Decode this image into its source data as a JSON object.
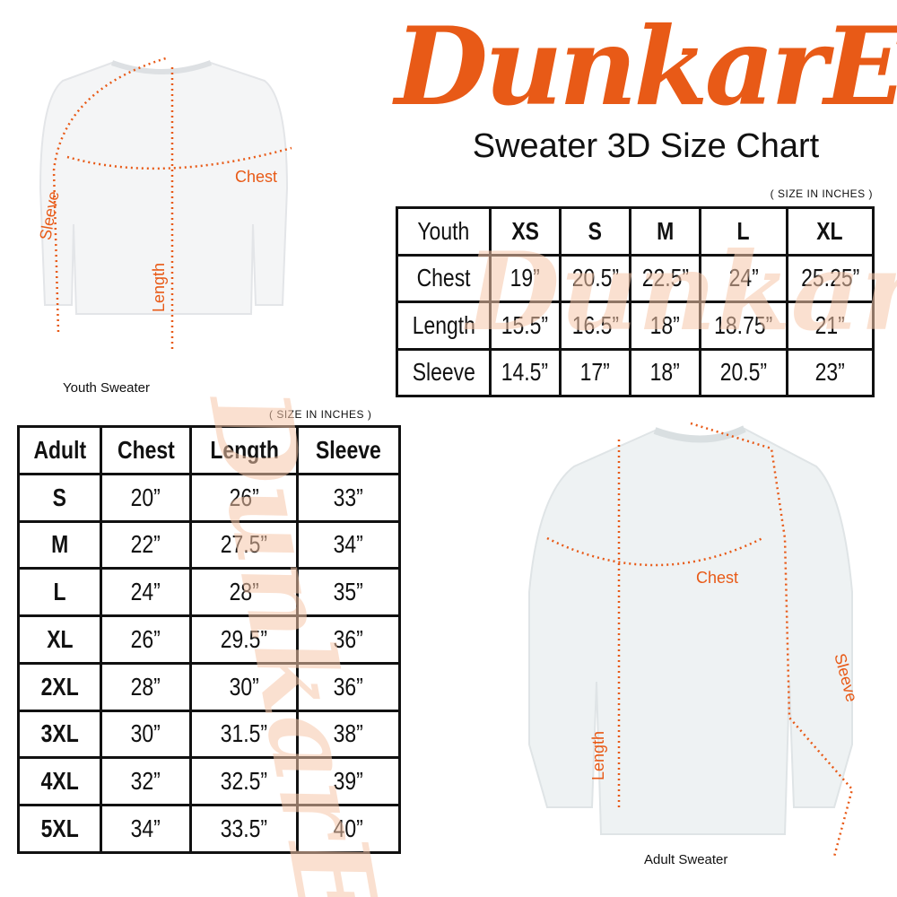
{
  "brand": {
    "logo_text": "DunkarE",
    "color": "#e85a17"
  },
  "title": "Sweater 3D Size Chart",
  "youth": {
    "unit_note": "( SIZE IN INCHES )",
    "header": [
      "Youth",
      "XS",
      "S",
      "M",
      "L",
      "XL"
    ],
    "rows": [
      [
        "Chest",
        "19”",
        "20.5”",
        "22.5”",
        "24”",
        "25.25”"
      ],
      [
        "Length",
        "15.5”",
        "16.5”",
        "18”",
        "18.75”",
        "21”"
      ],
      [
        "Sleeve",
        "14.5”",
        "17”",
        "18”",
        "20.5”",
        "23”"
      ]
    ],
    "caption": "Youth Sweater",
    "labels": {
      "chest": "Chest",
      "length": "Length",
      "sleeve": "Sleeve"
    }
  },
  "adult": {
    "unit_note": "( SIZE IN INCHES )",
    "header": [
      "Adult",
      "Chest",
      "Length",
      "Sleeve"
    ],
    "rows": [
      [
        "S",
        "20”",
        "26”",
        "33”"
      ],
      [
        "M",
        "22”",
        "27.5”",
        "34”"
      ],
      [
        "L",
        "24”",
        "28”",
        "35”"
      ],
      [
        "XL",
        "26”",
        "29.5”",
        "36”"
      ],
      [
        "2XL",
        "28”",
        "30”",
        "36”"
      ],
      [
        "3XL",
        "30”",
        "31.5”",
        "38”"
      ],
      [
        "4XL",
        "32”",
        "32.5”",
        "39”"
      ],
      [
        "5XL",
        "34”",
        "33.5”",
        "40”"
      ]
    ],
    "caption": "Adult Sweater",
    "labels": {
      "chest": "Chest",
      "length": "Length",
      "sleeve": "Sleeve"
    }
  }
}
